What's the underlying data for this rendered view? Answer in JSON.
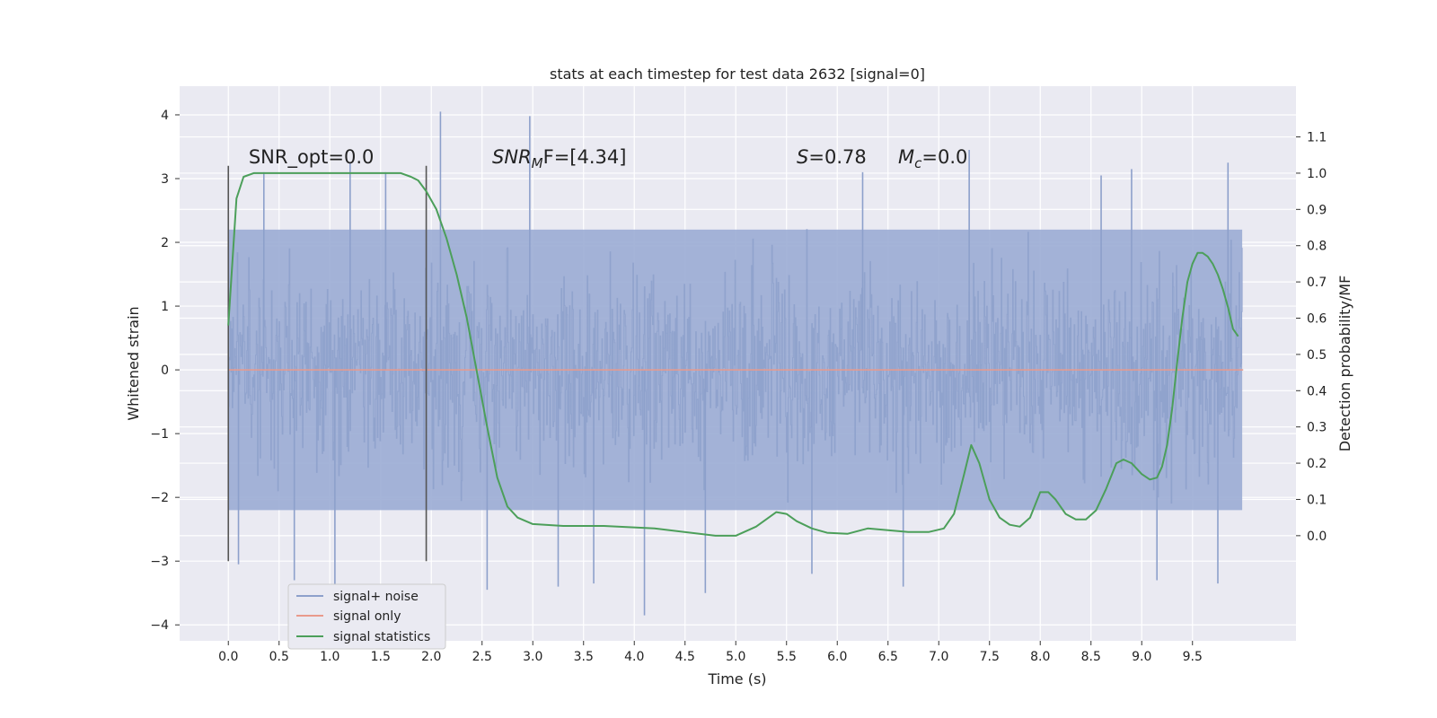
{
  "chart_data": {
    "type": "line",
    "title": "stats at each timestep for test data 2632 [signal=0]",
    "xlabel": "Time (s)",
    "ylabel": "Whitened strain",
    "y2label": "Detection probability/MF",
    "xlim": [
      -0.48,
      10.52
    ],
    "ylim": [
      -4.25,
      4.45
    ],
    "y2lim": [
      -0.29,
      1.24
    ],
    "x_ticks": [
      0.0,
      0.5,
      1.0,
      1.5,
      2.0,
      2.5,
      3.0,
      3.5,
      4.0,
      4.5,
      5.0,
      5.5,
      6.0,
      6.5,
      7.0,
      7.5,
      8.0,
      8.5,
      9.0,
      9.5
    ],
    "x_tick_labels": [
      "0.0",
      "0.5",
      "1.0",
      "1.5",
      "2.0",
      "2.5",
      "3.0",
      "3.5",
      "4.0",
      "4.5",
      "5.0",
      "5.5",
      "6.0",
      "6.5",
      "7.0",
      "7.5",
      "8.0",
      "8.5",
      "9.0",
      "9.5"
    ],
    "y_ticks": [
      4,
      3,
      2,
      1,
      0,
      -1,
      -2,
      -3,
      -4
    ],
    "y_tick_labels": [
      "4",
      "3",
      "2",
      "1",
      "0",
      "−1",
      "−2",
      "−3",
      "−4"
    ],
    "y2_ticks": [
      1.1,
      1.0,
      0.9,
      0.8,
      0.7,
      0.6,
      0.5,
      0.4,
      0.3,
      0.2,
      0.1,
      0.0
    ],
    "y2_tick_labels": [
      "1.1",
      "1.0",
      "0.9",
      "0.8",
      "0.7",
      "0.6",
      "0.5",
      "0.4",
      "0.3",
      "0.2",
      "0.1",
      "0.0"
    ],
    "grid": true,
    "legend_position": "lower-left",
    "series": [
      {
        "name": "signal+ noise",
        "axis": "left",
        "color": "#8da0cb",
        "style": "dense noise, approx. range -3.9 to 4.05",
        "t_range": [
          0.0,
          9.99
        ],
        "envelope": [
          -2.2,
          2.2
        ],
        "spikes": [
          {
            "t": 2.09,
            "v": 4.05
          },
          {
            "t": 2.97,
            "v": 3.98
          },
          {
            "t": 1.05,
            "v": -3.75
          },
          {
            "t": 4.1,
            "v": -3.85
          },
          {
            "t": 4.7,
            "v": -3.5
          },
          {
            "t": 4.7,
            "v": -0.55
          },
          {
            "t": 3.25,
            "v": -3.4
          },
          {
            "t": 2.55,
            "v": -3.45
          },
          {
            "t": 0.65,
            "v": -3.3
          },
          {
            "t": 9.75,
            "v": -3.35
          },
          {
            "t": 6.65,
            "v": -3.4
          },
          {
            "t": 0.1,
            "v": -3.05
          },
          {
            "t": 9.15,
            "v": -3.3
          },
          {
            "t": 7.3,
            "v": 3.45
          },
          {
            "t": 9.85,
            "v": 3.25
          },
          {
            "t": 8.9,
            "v": 3.15
          },
          {
            "t": 1.2,
            "v": 3.25
          },
          {
            "t": 1.55,
            "v": 3.1
          },
          {
            "t": 3.6,
            "v": -3.35
          },
          {
            "t": 5.75,
            "v": -3.2
          },
          {
            "t": 8.6,
            "v": 3.05
          },
          {
            "t": 6.25,
            "v": 3.1
          },
          {
            "t": 0.35,
            "v": 3.1
          }
        ]
      },
      {
        "name": "signal only",
        "axis": "left",
        "color": "#e99a8c",
        "x": [
          0.0,
          10.0
        ],
        "y": [
          0.0,
          0.0
        ]
      },
      {
        "name": "signal statistics",
        "axis": "right",
        "color": "#4c9f5a",
        "x": [
          0.0,
          0.08,
          0.15,
          0.25,
          0.5,
          1.0,
          1.5,
          1.7,
          1.8,
          1.87,
          1.95,
          2.05,
          2.15,
          2.25,
          2.35,
          2.45,
          2.55,
          2.65,
          2.75,
          2.85,
          3.0,
          3.3,
          3.7,
          4.2,
          4.8,
          5.0,
          5.2,
          5.4,
          5.5,
          5.6,
          5.75,
          5.9,
          6.1,
          6.3,
          6.5,
          6.7,
          6.9,
          7.05,
          7.15,
          7.25,
          7.32,
          7.4,
          7.5,
          7.6,
          7.7,
          7.8,
          7.9,
          8.0,
          8.08,
          8.15,
          8.25,
          8.35,
          8.45,
          8.55,
          8.65,
          8.75,
          8.82,
          8.9,
          9.0,
          9.08,
          9.15,
          9.2,
          9.25,
          9.3,
          9.35,
          9.4,
          9.45,
          9.5,
          9.55,
          9.6,
          9.65,
          9.7,
          9.75,
          9.8,
          9.85,
          9.9,
          9.95
        ],
        "y": [
          0.58,
          0.93,
          0.99,
          1.0,
          1.0,
          1.0,
          1.0,
          1.0,
          0.99,
          0.98,
          0.95,
          0.9,
          0.82,
          0.72,
          0.6,
          0.45,
          0.3,
          0.16,
          0.08,
          0.05,
          0.032,
          0.027,
          0.027,
          0.02,
          0.0,
          0.0,
          0.025,
          0.065,
          0.06,
          0.04,
          0.02,
          0.008,
          0.005,
          0.02,
          0.015,
          0.01,
          0.01,
          0.02,
          0.06,
          0.17,
          0.25,
          0.2,
          0.1,
          0.05,
          0.03,
          0.025,
          0.05,
          0.12,
          0.12,
          0.1,
          0.06,
          0.045,
          0.045,
          0.07,
          0.13,
          0.2,
          0.21,
          0.2,
          0.17,
          0.155,
          0.16,
          0.19,
          0.25,
          0.35,
          0.48,
          0.6,
          0.7,
          0.75,
          0.78,
          0.78,
          0.77,
          0.75,
          0.72,
          0.68,
          0.63,
          0.57,
          0.55
        ]
      }
    ],
    "vertical_lines": [
      0.0,
      1.95
    ],
    "vertical_line_range": [
      -3.0,
      3.2
    ],
    "annotations": [
      {
        "text": "SNR_opt=0.0",
        "x": 0.2,
        "y": 3.2
      },
      {
        "text_var": "SNR",
        "text_sub": "M",
        "text_rest": "F=[4.34]",
        "x": 2.6,
        "y": 3.2
      },
      {
        "text_var": "S",
        "text_rest": "=0.78",
        "x": 5.6,
        "y": 3.2
      },
      {
        "text_var": "M",
        "text_sub": "c",
        "text_rest": "=0.0",
        "x": 6.6,
        "y": 3.2
      }
    ]
  }
}
